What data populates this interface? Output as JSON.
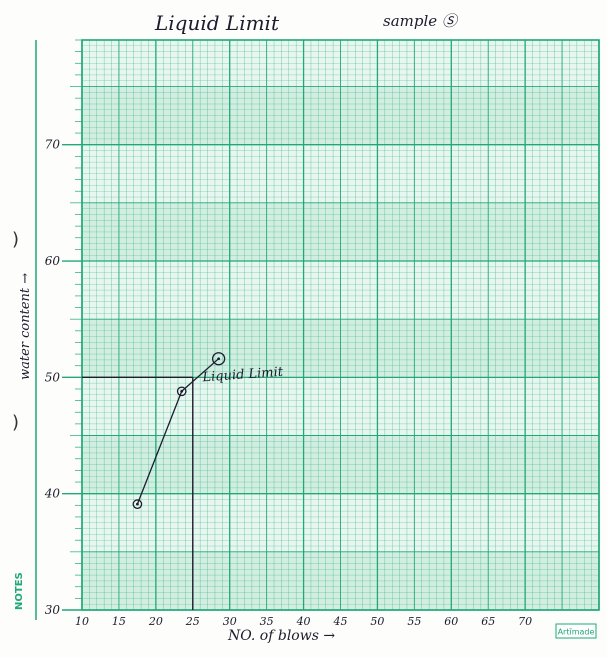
{
  "header": {
    "title": "Liquid Limit",
    "sample": "sample Ⓢ"
  },
  "margin": {
    "notes_label": "NOTES"
  },
  "brand": {
    "label": "Artīmade"
  },
  "colors": {
    "grid": "#1fa878",
    "band": "#bfe7d6",
    "paper": "#e7f6ef",
    "ink": "#1c1c2e"
  },
  "chart_data": {
    "type": "line",
    "title": "Liquid Limit",
    "subtitle": "sample Ⓢ",
    "xlabel": "NO. of blows →",
    "ylabel": "water content →",
    "xlim": [
      10,
      80
    ],
    "ylim": [
      30,
      79
    ],
    "x_ticks": [
      10,
      15,
      20,
      25,
      30,
      35,
      40,
      45,
      50,
      55,
      60,
      65,
      70
    ],
    "x_tick_labels": [
      "10",
      "15",
      "20",
      "25",
      "30",
      "35",
      "40",
      "45",
      "50",
      "55",
      "60",
      "65",
      "70"
    ],
    "y_ticks": [
      30,
      40,
      50,
      60,
      70
    ],
    "y_tick_labels": [
      "30",
      "40",
      "50",
      "60",
      "70"
    ],
    "grid": true,
    "series": [
      {
        "points": [
          {
            "x": 17.5,
            "y": 39.1
          },
          {
            "x": 23.5,
            "y": 48.8
          },
          {
            "x": 28.5,
            "y": 51.6
          }
        ]
      }
    ],
    "reference_lines": {
      "x": 25,
      "y": 50
    },
    "annotations": [
      {
        "text": "Liquid Limit",
        "x": 25,
        "y": 50
      }
    ]
  }
}
